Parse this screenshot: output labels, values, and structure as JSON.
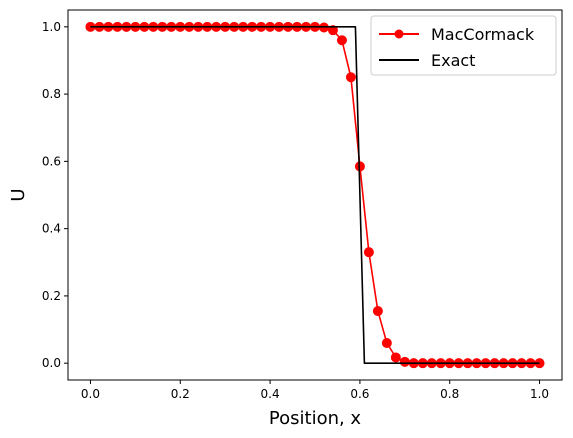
{
  "chart_data": {
    "type": "line",
    "title": "",
    "xlabel": "Position, x",
    "ylabel": "U",
    "xlim": [
      -0.05,
      1.05
    ],
    "ylim": [
      -0.05,
      1.05
    ],
    "xticks": [
      "0.0",
      "0.2",
      "0.4",
      "0.6",
      "0.8",
      "1.0"
    ],
    "xtick_values": [
      0.0,
      0.2,
      0.4,
      0.6,
      0.8,
      1.0
    ],
    "yticks": [
      "0.0",
      "0.2",
      "0.4",
      "0.6",
      "0.8",
      "1.0"
    ],
    "ytick_values": [
      0.0,
      0.2,
      0.4,
      0.6,
      0.8,
      1.0
    ],
    "grid": false,
    "legend_position": "top-right",
    "series": [
      {
        "name": "MacCormack",
        "color": "#ff0000",
        "marker": "circle",
        "x": [
          0.0,
          0.02,
          0.04,
          0.06,
          0.08,
          0.1,
          0.12,
          0.14,
          0.16,
          0.18,
          0.2,
          0.22,
          0.24,
          0.26,
          0.28,
          0.3,
          0.32,
          0.34,
          0.36,
          0.38,
          0.4,
          0.42,
          0.44,
          0.46,
          0.48,
          0.5,
          0.52,
          0.54,
          0.56,
          0.58,
          0.6,
          0.62,
          0.64,
          0.66,
          0.68,
          0.7,
          0.72,
          0.74,
          0.76,
          0.78,
          0.8,
          0.82,
          0.84,
          0.86,
          0.88,
          0.9,
          0.92,
          0.94,
          0.96,
          0.98,
          1.0
        ],
        "y": [
          1.0,
          1.0,
          1.0,
          1.0,
          1.0,
          1.0,
          1.0,
          1.0,
          1.0,
          1.0,
          1.0,
          1.0,
          1.0,
          1.0,
          1.0,
          1.0,
          1.0,
          1.0,
          1.0,
          1.0,
          1.0,
          1.0,
          1.0,
          1.0,
          1.0,
          1.0,
          0.998,
          0.99,
          0.96,
          0.85,
          0.585,
          0.33,
          0.155,
          0.06,
          0.017,
          0.004,
          0.0,
          0.0,
          0.0,
          0.0,
          0.0,
          0.0,
          0.0,
          0.0,
          0.0,
          0.0,
          0.0,
          0.0,
          0.0,
          0.0,
          0.0
        ]
      },
      {
        "name": "Exact",
        "color": "#000000",
        "marker": "none",
        "x": [
          0.0,
          0.59,
          0.61,
          1.0
        ],
        "y": [
          1.0,
          1.0,
          0.0,
          0.0
        ]
      }
    ]
  }
}
